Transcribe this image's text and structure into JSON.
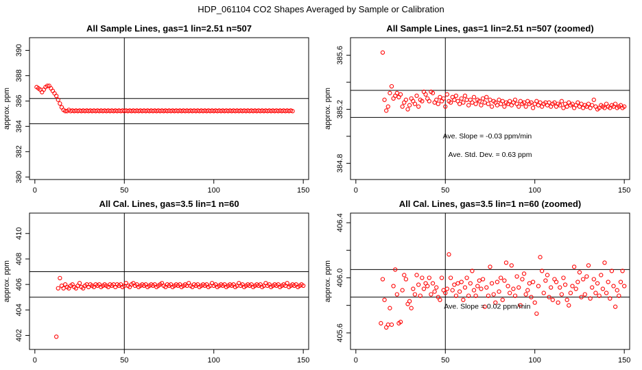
{
  "figure_title": "HDP_061104  CO2 Shapes Averaged by Sample or Calibration",
  "colors": {
    "points": "#ff0000",
    "lines": "#000000",
    "background": "#ffffff"
  },
  "chart_data": [
    {
      "type": "scatter",
      "title": "All Sample Lines, gas=1 lin=2.51 n=507",
      "ylabel": "approx. ppm",
      "xlabel": "",
      "xlim": [
        -3,
        153
      ],
      "ylim": [
        379.8,
        391.0
      ],
      "xticks": [
        0,
        50,
        100,
        150
      ],
      "yticks": [
        380,
        382,
        384,
        386,
        388,
        390
      ],
      "vline_x": 50,
      "hlines_y": [
        386.2,
        384.2
      ],
      "x_start": 1,
      "x_step": 1,
      "y": [
        387.1,
        387.0,
        386.9,
        386.7,
        386.9,
        387.1,
        387.2,
        387.2,
        387.0,
        386.8,
        386.6,
        386.4,
        386.1,
        385.8,
        385.5,
        385.3,
        385.2,
        385.2,
        385.3,
        385.2,
        385.25,
        385.2,
        385.25,
        385.2,
        385.25,
        385.2,
        385.25,
        385.2,
        385.25,
        385.2,
        385.25,
        385.2,
        385.25,
        385.2,
        385.25,
        385.2,
        385.25,
        385.2,
        385.25,
        385.2,
        385.25,
        385.2,
        385.25,
        385.2,
        385.25,
        385.2,
        385.25,
        385.2,
        385.25,
        385.2,
        385.25,
        385.2,
        385.25,
        385.2,
        385.25,
        385.2,
        385.25,
        385.2,
        385.25,
        385.2,
        385.25,
        385.2,
        385.25,
        385.2,
        385.25,
        385.2,
        385.25,
        385.2,
        385.25,
        385.2,
        385.25,
        385.2,
        385.25,
        385.2,
        385.25,
        385.2,
        385.25,
        385.2,
        385.25,
        385.2,
        385.25,
        385.2,
        385.25,
        385.2,
        385.25,
        385.2,
        385.25,
        385.2,
        385.25,
        385.2,
        385.25,
        385.2,
        385.25,
        385.2,
        385.25,
        385.2,
        385.25,
        385.2,
        385.25,
        385.2,
        385.25,
        385.2,
        385.25,
        385.2,
        385.25,
        385.2,
        385.25,
        385.2,
        385.25,
        385.2,
        385.25,
        385.2,
        385.25,
        385.2,
        385.25,
        385.2,
        385.25,
        385.2,
        385.25,
        385.2,
        385.25,
        385.2,
        385.25,
        385.2,
        385.25,
        385.2,
        385.25,
        385.2,
        385.25,
        385.2,
        385.25,
        385.2,
        385.25,
        385.2,
        385.25,
        385.2,
        385.25,
        385.2,
        385.25,
        385.2,
        385.25,
        385.2,
        385.25,
        385.2
      ],
      "annotations": []
    },
    {
      "type": "scatter",
      "title": "All Sample Lines, gas=1 lin=2.51 n=507 (zoomed)",
      "ylabel": "approx. ppm",
      "xlabel": "",
      "xlim": [
        -3,
        153
      ],
      "ylim": [
        384.68,
        385.73
      ],
      "xticks": [
        0,
        50,
        100,
        150
      ],
      "yticks": [
        384.8,
        385.0,
        385.2,
        385.4,
        385.6
      ],
      "ytick_labels": [
        "384.8",
        "",
        "385.2",
        "",
        "385.6"
      ],
      "vline_x": 50,
      "hlines_y": [
        385.34,
        385.14
      ],
      "x_start": 15,
      "x_step": 1,
      "y": [
        385.62,
        385.27,
        385.19,
        385.22,
        385.32,
        385.37,
        385.28,
        385.3,
        385.32,
        385.29,
        385.31,
        385.22,
        385.25,
        385.27,
        385.2,
        385.23,
        385.28,
        385.26,
        385.24,
        385.3,
        385.22,
        385.27,
        385.26,
        385.33,
        385.31,
        385.28,
        385.26,
        385.33,
        385.32,
        385.25,
        385.27,
        385.24,
        385.29,
        385.26,
        385.28,
        385.22,
        385.31,
        385.26,
        385.25,
        385.29,
        385.27,
        385.3,
        385.26,
        385.24,
        385.28,
        385.25,
        385.3,
        385.27,
        385.23,
        385.27,
        385.25,
        385.29,
        385.24,
        385.27,
        385.26,
        385.23,
        385.28,
        385.25,
        385.29,
        385.24,
        385.27,
        385.22,
        385.26,
        385.25,
        385.23,
        385.27,
        385.24,
        385.26,
        385.22,
        385.25,
        385.24,
        385.26,
        385.23,
        385.25,
        385.27,
        385.24,
        385.22,
        385.26,
        385.24,
        385.25,
        385.22,
        385.26,
        385.24,
        385.25,
        385.21,
        385.24,
        385.26,
        385.23,
        385.25,
        385.22,
        385.24,
        385.25,
        385.23,
        385.25,
        385.22,
        385.24,
        385.25,
        385.22,
        385.24,
        385.23,
        385.26,
        385.21,
        385.24,
        385.22,
        385.25,
        385.23,
        385.24,
        385.21,
        385.23,
        385.25,
        385.22,
        385.24,
        385.21,
        385.23,
        385.22,
        385.24,
        385.21,
        385.23,
        385.27,
        385.22,
        385.2,
        385.21,
        385.23,
        385.22,
        385.21,
        385.24,
        385.22,
        385.21,
        385.23,
        385.22,
        385.24,
        385.21,
        385.22,
        385.23,
        385.21,
        385.22
      ],
      "annotations": [
        "Ave. Slope =  -0.03  ppm/min",
        "Ave. Std. Dev. =  0.63  ppm"
      ]
    },
    {
      "type": "scatter",
      "title": "All Cal. Lines, gas=3.5 lin=1 n=60",
      "ylabel": "approx. ppm",
      "xlabel": "",
      "xlim": [
        -3,
        153
      ],
      "ylim": [
        400.9,
        411.6
      ],
      "xticks": [
        0,
        50,
        100,
        150
      ],
      "yticks": [
        402,
        404,
        406,
        408,
        410
      ],
      "vline_x": 50,
      "hlines_y": [
        407.0,
        405.0
      ],
      "x_start": 12,
      "x_step": 1,
      "y": [
        401.9,
        405.7,
        406.5,
        405.9,
        405.7,
        406.0,
        405.8,
        405.7,
        405.9,
        406.0,
        405.8,
        405.7,
        405.9,
        406.1,
        405.8,
        405.7,
        405.9,
        406.0,
        405.8,
        406.0,
        405.9,
        405.8,
        406.0,
        405.9,
        406.0,
        405.8,
        405.9,
        406.0,
        405.9,
        405.8,
        406.0,
        405.9,
        406.0,
        405.8,
        406.0,
        405.9,
        406.0,
        405.8,
        405.9,
        406.1,
        405.9,
        405.8,
        406.0,
        406.1,
        405.9,
        406.0,
        405.8,
        405.9,
        406.0,
        405.9,
        406.0,
        405.8,
        405.9,
        406.0,
        405.9,
        406.0,
        405.8,
        405.9,
        406.0,
        406.1,
        405.9,
        405.8,
        406.0,
        405.9,
        406.0,
        405.8,
        405.9,
        406.0,
        405.9,
        406.0,
        405.8,
        405.9,
        406.0,
        405.9,
        406.1,
        405.9,
        405.8,
        406.0,
        405.9,
        406.0,
        405.8,
        405.9,
        406.0,
        405.9,
        406.0,
        405.8,
        405.9,
        406.1,
        405.9,
        406.0,
        405.8,
        405.9,
        406.0,
        405.9,
        406.0,
        405.8,
        405.9,
        406.0,
        405.9,
        406.0,
        405.8,
        405.9,
        406.1,
        405.9,
        406.0,
        405.8,
        405.9,
        406.0,
        405.9,
        406.0,
        405.8,
        405.9,
        406.0,
        405.9,
        406.0,
        405.8,
        405.9,
        406.1,
        405.9,
        406.0,
        405.8,
        405.9,
        406.0,
        405.9,
        406.0,
        405.8,
        405.9,
        406.0,
        405.9,
        406.1,
        405.8,
        405.9,
        406.0,
        405.9,
        406.0,
        405.8,
        405.9,
        406.0,
        405.9
      ],
      "annotations": []
    },
    {
      "type": "scatter",
      "title": "All Cal. Lines, gas=3.5 lin=1 n=60 (zoomed)",
      "ylabel": "approx. ppm",
      "xlabel": "",
      "xlim": [
        -3,
        153
      ],
      "ylim": [
        405.48,
        406.47
      ],
      "xticks": [
        0,
        50,
        100,
        150
      ],
      "yticks": [
        405.6,
        405.8,
        406.0,
        406.2,
        406.4
      ],
      "ytick_labels": [
        "405.6",
        "",
        "406.0",
        "",
        "406.4"
      ],
      "vline_x": 50,
      "hlines_y": [
        406.06,
        405.86
      ],
      "x_start": 14,
      "x_step": 1,
      "y": [
        405.67,
        405.99,
        405.84,
        405.64,
        405.66,
        405.78,
        405.66,
        405.94,
        406.06,
        405.88,
        405.67,
        405.68,
        405.91,
        406.02,
        405.99,
        405.81,
        405.83,
        405.78,
        405.92,
        405.88,
        406.02,
        405.95,
        405.87,
        406.0,
        405.92,
        405.96,
        405.94,
        406.0,
        405.88,
        405.96,
        405.9,
        405.93,
        405.86,
        405.84,
        406.0,
        405.91,
        405.89,
        405.92,
        406.17,
        406.0,
        405.91,
        405.95,
        405.87,
        405.96,
        405.9,
        405.97,
        405.84,
        405.93,
        406.0,
        405.87,
        405.96,
        406.05,
        405.91,
        405.87,
        405.94,
        405.98,
        405.92,
        405.99,
        405.79,
        405.93,
        405.87,
        406.08,
        405.96,
        405.88,
        405.82,
        405.97,
        405.9,
        406.0,
        405.84,
        405.98,
        406.11,
        405.94,
        405.89,
        406.09,
        405.92,
        405.87,
        406.01,
        405.93,
        405.8,
        405.99,
        406.03,
        405.88,
        405.91,
        405.96,
        405.86,
        405.97,
        405.82,
        405.74,
        405.94,
        406.15,
        406.05,
        405.89,
        405.98,
        406.02,
        405.86,
        405.93,
        405.84,
        405.99,
        405.97,
        405.82,
        405.93,
        405.88,
        406.0,
        405.95,
        405.84,
        405.8,
        405.89,
        405.94,
        406.08,
        405.92,
        405.97,
        406.04,
        405.86,
        405.99,
        405.88,
        406.01,
        406.09,
        405.85,
        405.93,
        405.99,
        405.89,
        405.96,
        405.87,
        406.02,
        405.92,
        406.11,
        405.89,
        405.97,
        405.85,
        406.05,
        405.94,
        405.79,
        405.91,
        405.87,
        405.97,
        406.05,
        405.94
      ],
      "annotations": [
        "Ave. Slope =  0.02  ppm/min"
      ]
    }
  ]
}
